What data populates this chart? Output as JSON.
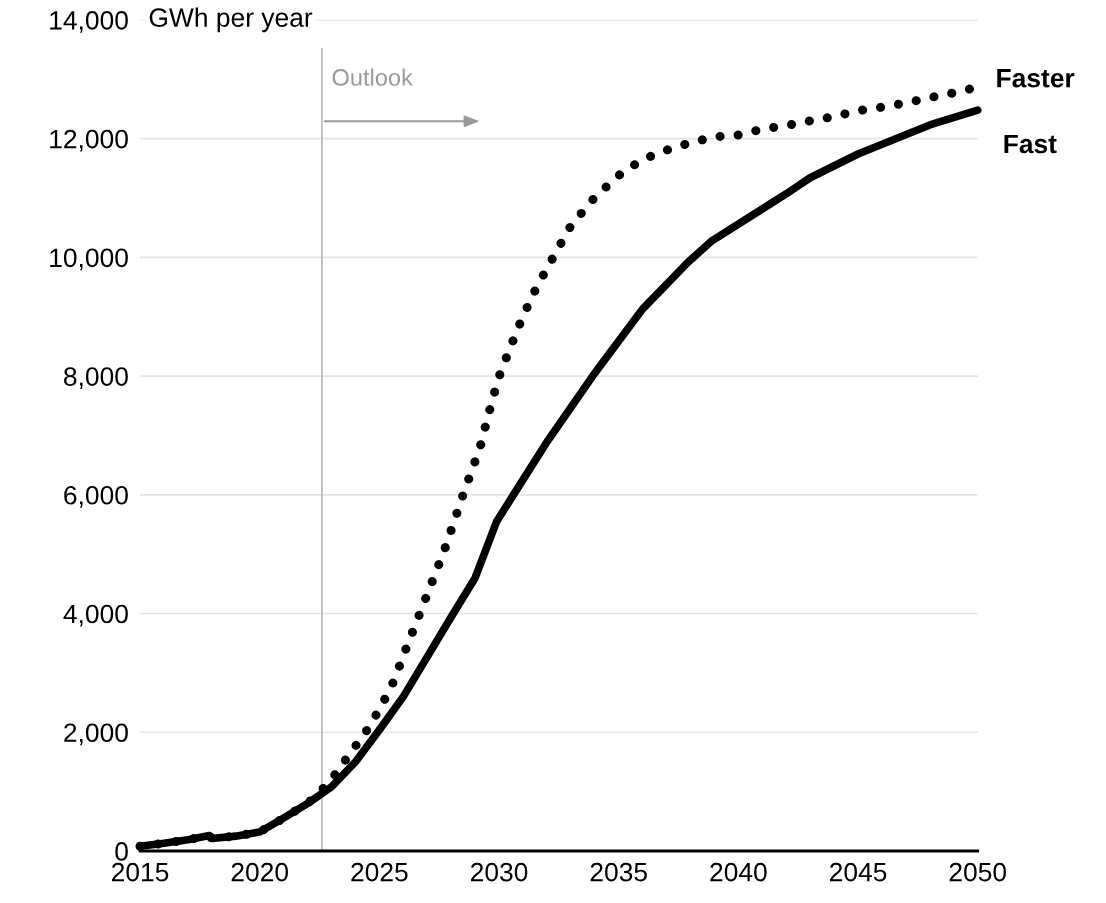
{
  "chart_data": {
    "type": "line",
    "ylabel": "GWh per year",
    "xlim": [
      2015,
      2050
    ],
    "xticks": [
      2015,
      2020,
      2025,
      2030,
      2035,
      2040,
      2045,
      2050
    ],
    "ylim": [
      0,
      14000
    ],
    "yticks": [
      0,
      {
        "value": 2000,
        "label": "2,000"
      },
      {
        "value": 4000,
        "label": "4,000"
      },
      {
        "value": 6000,
        "label": "6,000"
      },
      {
        "value": 8000,
        "label": "8,000"
      },
      {
        "value": 10000,
        "label": "10,000"
      },
      {
        "value": 12000,
        "label": "12,000"
      },
      {
        "value": 14000,
        "label": "14,000"
      }
    ],
    "grid": "y",
    "ref_lines": [
      {
        "axis": "x",
        "value": 2022.6,
        "label": "Outlook",
        "color": "#bfbfbf"
      }
    ],
    "series": [
      {
        "name": "Faster",
        "color": "#000000",
        "line_style": "dotted",
        "x": [
          2015,
          2016,
          2017,
          2017.9,
          2018,
          2019,
          2020,
          2021,
          2022,
          2022.9,
          2024.6,
          2025.3,
          2025.6,
          2026.2,
          2026.7,
          2027.2,
          2027.7,
          2028.2,
          2028.4,
          2029.2,
          2029.7,
          2030,
          2030.5,
          2031,
          2031.6,
          2032.4,
          2033,
          2034,
          2035,
          2036,
          2037.1,
          2038,
          2039,
          2040,
          2041,
          2042,
          2043,
          2044,
          2045,
          2046,
          2047,
          2048,
          2049,
          2049.7
        ],
        "values": [
          80,
          130,
          190,
          260,
          210,
          250,
          320,
          555,
          800,
          1150,
          2100,
          2610,
          2860,
          3500,
          4010,
          4530,
          5050,
          5640,
          5890,
          6790,
          7570,
          7990,
          8510,
          9010,
          9520,
          10100,
          10530,
          11010,
          11380,
          11650,
          11820,
          11930,
          12030,
          12060,
          12160,
          12220,
          12300,
          12370,
          12470,
          12530,
          12600,
          12690,
          12770,
          12840
        ]
      },
      {
        "name": "Fast",
        "color": "#000000",
        "line_style": "solid",
        "x": [
          2015,
          2016,
          2017,
          2017.9,
          2018,
          2019,
          2020,
          2021,
          2022,
          2023,
          2024,
          2025,
          2026,
          2027,
          2028,
          2029,
          2029.9,
          2032,
          2034,
          2036,
          2037.9,
          2038.9,
          2042,
          2043,
          2045,
          2048,
          2050
        ],
        "values": [
          80,
          130,
          190,
          260,
          210,
          250,
          320,
          555,
          800,
          1080,
          1500,
          2040,
          2600,
          3270,
          3940,
          4600,
          5550,
          6890,
          8050,
          9130,
          9920,
          10280,
          11070,
          11340,
          11740,
          12230,
          12480
        ]
      }
    ]
  }
}
